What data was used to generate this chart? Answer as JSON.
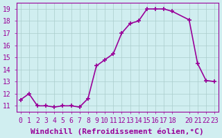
{
  "x": [
    0,
    1,
    2,
    3,
    4,
    5,
    6,
    7,
    8,
    9,
    10,
    11,
    12,
    13,
    14,
    15,
    16,
    17,
    18,
    20,
    21,
    22,
    23
  ],
  "y": [
    11.5,
    12.0,
    11.0,
    11.0,
    10.9,
    11.0,
    11.0,
    10.9,
    11.6,
    14.3,
    14.8,
    15.3,
    17.0,
    17.8,
    18.0,
    19.0,
    19.0,
    19.0,
    18.8,
    18.1,
    14.5,
    13.1,
    13.0
  ],
  "line_color": "#990099",
  "marker": "+",
  "marker_size": 4,
  "background_color": "#d0eef0",
  "grid_color": "#aacccc",
  "xlabel": "Windchill (Refroidissement éolien,°C)",
  "ylim": [
    10.5,
    19.5
  ],
  "xlim": [
    -0.5,
    23.5
  ],
  "yticks": [
    11,
    12,
    13,
    14,
    15,
    16,
    17,
    18,
    19
  ],
  "xticks": [
    0,
    1,
    2,
    3,
    4,
    5,
    6,
    7,
    8,
    9,
    10,
    11,
    12,
    13,
    14,
    15,
    16,
    17,
    18,
    20,
    21,
    22,
    23
  ],
  "xtick_labels": [
    "0",
    "1",
    "2",
    "3",
    "4",
    "5",
    "6",
    "7",
    "8",
    "9",
    "10",
    "11",
    "12",
    "13",
    "14",
    "15",
    "16",
    "17",
    "18",
    "20",
    "21",
    "22",
    "23"
  ],
  "tick_color": "#990099",
  "axis_color": "#990099",
  "font_color": "#990099",
  "font_size": 7,
  "xlabel_fontsize": 8
}
